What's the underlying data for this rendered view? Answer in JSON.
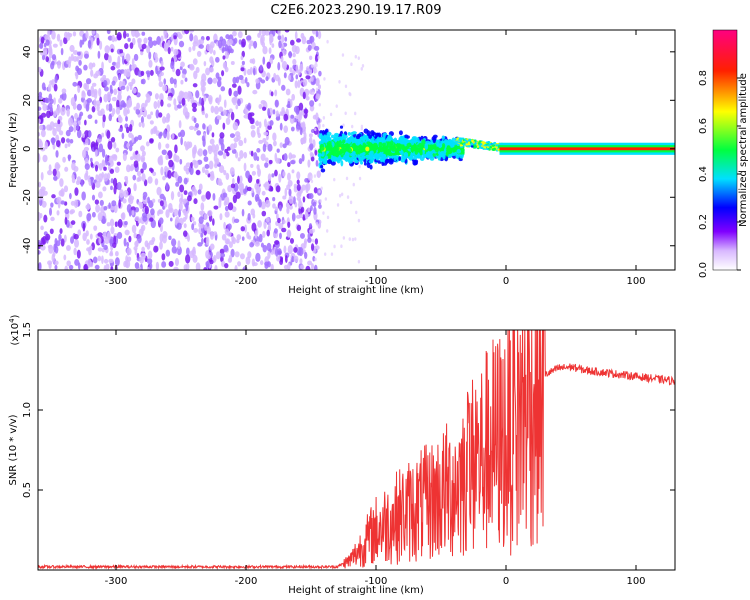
{
  "title": "C2E6.2023.290.19.17.R09",
  "colors": {
    "frame": "#000000",
    "snr_line": "#ee3333",
    "scatter_base": "#7a3cf0"
  },
  "chart_data": [
    {
      "type": "heatmap",
      "xlabel": "Height of straight line (km)",
      "ylabel": "Frequency (Hz)",
      "xlim": [
        -360,
        130
      ],
      "ylim": [
        -50,
        49
      ],
      "x_ticks": [
        -300,
        -200,
        -100,
        0,
        100
      ],
      "y_ticks": [
        40,
        20,
        0,
        -20,
        -40
      ],
      "colorbar": {
        "label": "Normalized spectral amplitude",
        "range": [
          0,
          1
        ],
        "ticks": [
          "0.0",
          "0.2",
          "0.4",
          "0.6",
          "0.8"
        ],
        "tick_values": [
          0.0,
          0.2,
          0.4,
          0.6,
          0.8
        ],
        "colormap": [
          "#ffffff",
          "#d8b8ff",
          "#8000ff",
          "#0000ff",
          "#00e0ff",
          "#00ff40",
          "#ffff00",
          "#ff2000",
          "#ff0080"
        ]
      },
      "regions": [
        {
          "x": [
            -360,
            -143
          ],
          "freq": [
            -50,
            49
          ],
          "amplitude": 0.15,
          "note_shown": ""
        },
        {
          "x": [
            -143,
            -35
          ],
          "freq": [
            -12,
            12
          ],
          "amplitude": 0.35
        },
        {
          "x": [
            -35,
            0
          ],
          "freq": [
            -3,
            5
          ],
          "amplitude": 0.5
        },
        {
          "x": [
            0,
            130
          ],
          "freq": [
            -1,
            1
          ],
          "amplitude": 0.85
        }
      ]
    },
    {
      "type": "line",
      "xlabel": "Height of straight line (km)",
      "ylabel": "SNR (10 * v/v)",
      "y_multiplier": "(x10",
      "y_multiplier_exp": "4",
      "y_multiplier_close": ")",
      "xlim": [
        -360,
        130
      ],
      "ylim": [
        0,
        15000
      ],
      "x_ticks": [
        -300,
        -200,
        -100,
        0,
        100
      ],
      "y_ticks": [
        0.5,
        1.0,
        1.5
      ],
      "y_tick_values": [
        5000,
        10000,
        15000
      ],
      "series": [
        {
          "x": [
            -360,
            -300,
            -200,
            -130,
            -120,
            -100,
            -80,
            -60,
            -40,
            -30,
            -20,
            -10,
            0,
            10,
            20,
            30,
            40,
            50,
            60,
            80,
            100,
            120,
            130
          ],
          "y": [
            200,
            200,
            200,
            200,
            600,
            2500,
            3500,
            4200,
            5200,
            6200,
            7000,
            7800,
            8200,
            9500,
            11000,
            12200,
            12600,
            12700,
            12500,
            12300,
            12100,
            11900,
            11800
          ]
        }
      ]
    }
  ]
}
